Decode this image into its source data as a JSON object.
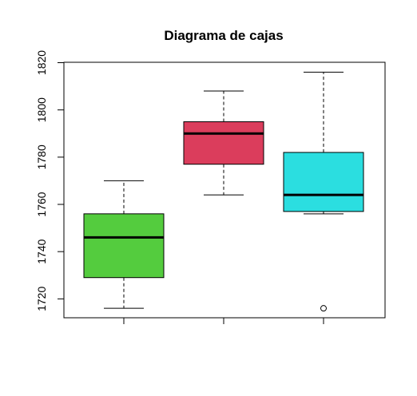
{
  "chart_data": {
    "type": "boxplot",
    "title": "Diagrama de cajas",
    "xlabel": "",
    "ylabel": "",
    "ylim": [
      1712,
      1820
    ],
    "yticks": [
      1720,
      1740,
      1760,
      1780,
      1800,
      1820
    ],
    "grid": false,
    "legend": "none",
    "boxes": [
      {
        "min": 1716,
        "q1": 1729,
        "median": 1746,
        "q3": 1756,
        "max": 1770,
        "outliers": [],
        "color": "#54CC3E"
      },
      {
        "min": 1764,
        "q1": 1777,
        "median": 1790,
        "q3": 1795,
        "max": 1808,
        "outliers": [],
        "color": "#DB3D5C"
      },
      {
        "min": 1756,
        "q1": 1757,
        "median": 1764,
        "q3": 1782,
        "max": 1816,
        "outliers": [
          1716
        ],
        "color": "#2BDEE0"
      }
    ]
  }
}
